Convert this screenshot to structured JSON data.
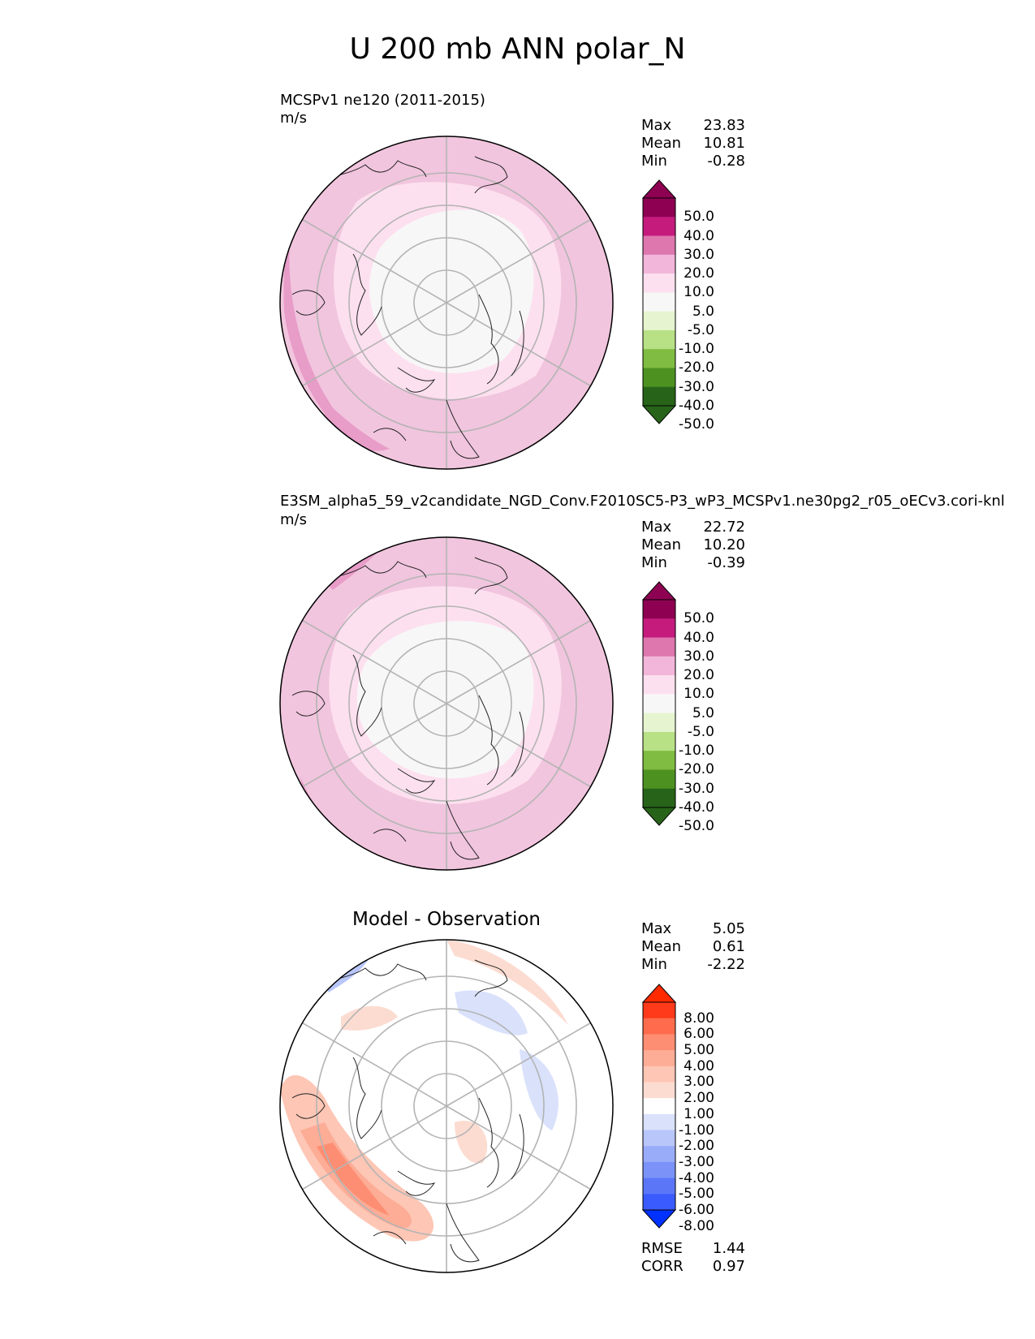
{
  "figure": {
    "title": "U 200 mb ANN polar_N"
  },
  "panels": [
    {
      "name": "test",
      "label": "MCSPv1 ne120 (2011-2015)",
      "units": "m/s",
      "stats": [
        {
          "key": "Max",
          "value": "23.83"
        },
        {
          "key": "Mean",
          "value": "10.81"
        },
        {
          "key": "Min",
          "value": "-0.28"
        }
      ],
      "colorbar": {
        "ticks": [
          "50.0",
          "40.0",
          "30.0",
          "20.0",
          "10.0",
          "5.0",
          "-5.0",
          "-10.0",
          "-20.0",
          "-30.0",
          "-40.0",
          "-50.0"
        ],
        "colors": [
          "#8e0152",
          "#c51b7d",
          "#de77ae",
          "#f1b6da",
          "#fde0ef",
          "#f7f7f7",
          "#e6f5d0",
          "#b8e186",
          "#7fbc41",
          "#4d9221",
          "#276419"
        ],
        "top_arrow": "#8e0152",
        "bottom_arrow": "#276419"
      }
    },
    {
      "name": "reference",
      "label": "E3SM_alpha5_59_v2candidate_NGD_Conv.F2010SC5-P3_wP3_MCSPv1.ne30pg2_r05_oECv3.cori-knl",
      "units": "m/s",
      "stats": [
        {
          "key": "Max",
          "value": "22.72"
        },
        {
          "key": "Mean",
          "value": "10.20"
        },
        {
          "key": "Min",
          "value": "-0.39"
        }
      ],
      "colorbar": {
        "ticks": [
          "50.0",
          "40.0",
          "30.0",
          "20.0",
          "10.0",
          "5.0",
          "-5.0",
          "-10.0",
          "-20.0",
          "-30.0",
          "-40.0",
          "-50.0"
        ],
        "colors": [
          "#8e0152",
          "#c51b7d",
          "#de77ae",
          "#f1b6da",
          "#fde0ef",
          "#f7f7f7",
          "#e6f5d0",
          "#b8e186",
          "#7fbc41",
          "#4d9221",
          "#276419"
        ],
        "top_arrow": "#8e0152",
        "bottom_arrow": "#276419"
      }
    },
    {
      "name": "difference",
      "label": "Model - Observation",
      "stats": [
        {
          "key": "Max",
          "value": "5.05"
        },
        {
          "key": "Mean",
          "value": "0.61"
        },
        {
          "key": "Min",
          "value": "-2.22"
        }
      ],
      "colorbar": {
        "ticks": [
          "8.00",
          "6.00",
          "5.00",
          "4.00",
          "3.00",
          "2.00",
          "1.00",
          "-1.00",
          "-2.00",
          "-3.00",
          "-4.00",
          "-5.00",
          "-6.00",
          "-8.00"
        ],
        "colors": [
          "#fe3a1a",
          "#fe6b4d",
          "#fe8e73",
          "#fdac96",
          "#fdc6b5",
          "#fcdcd1",
          "#ffffff",
          "#d9e1fb",
          "#b8c6fa",
          "#98acfa",
          "#7b93f9",
          "#5b77f8",
          "#3a5bfd"
        ],
        "top_arrow": "#ff2a00",
        "bottom_arrow": "#0032ff"
      },
      "metrics": [
        {
          "key": "RMSE",
          "value": "1.44"
        },
        {
          "key": "CORR",
          "value": "0.97"
        }
      ]
    }
  ]
}
